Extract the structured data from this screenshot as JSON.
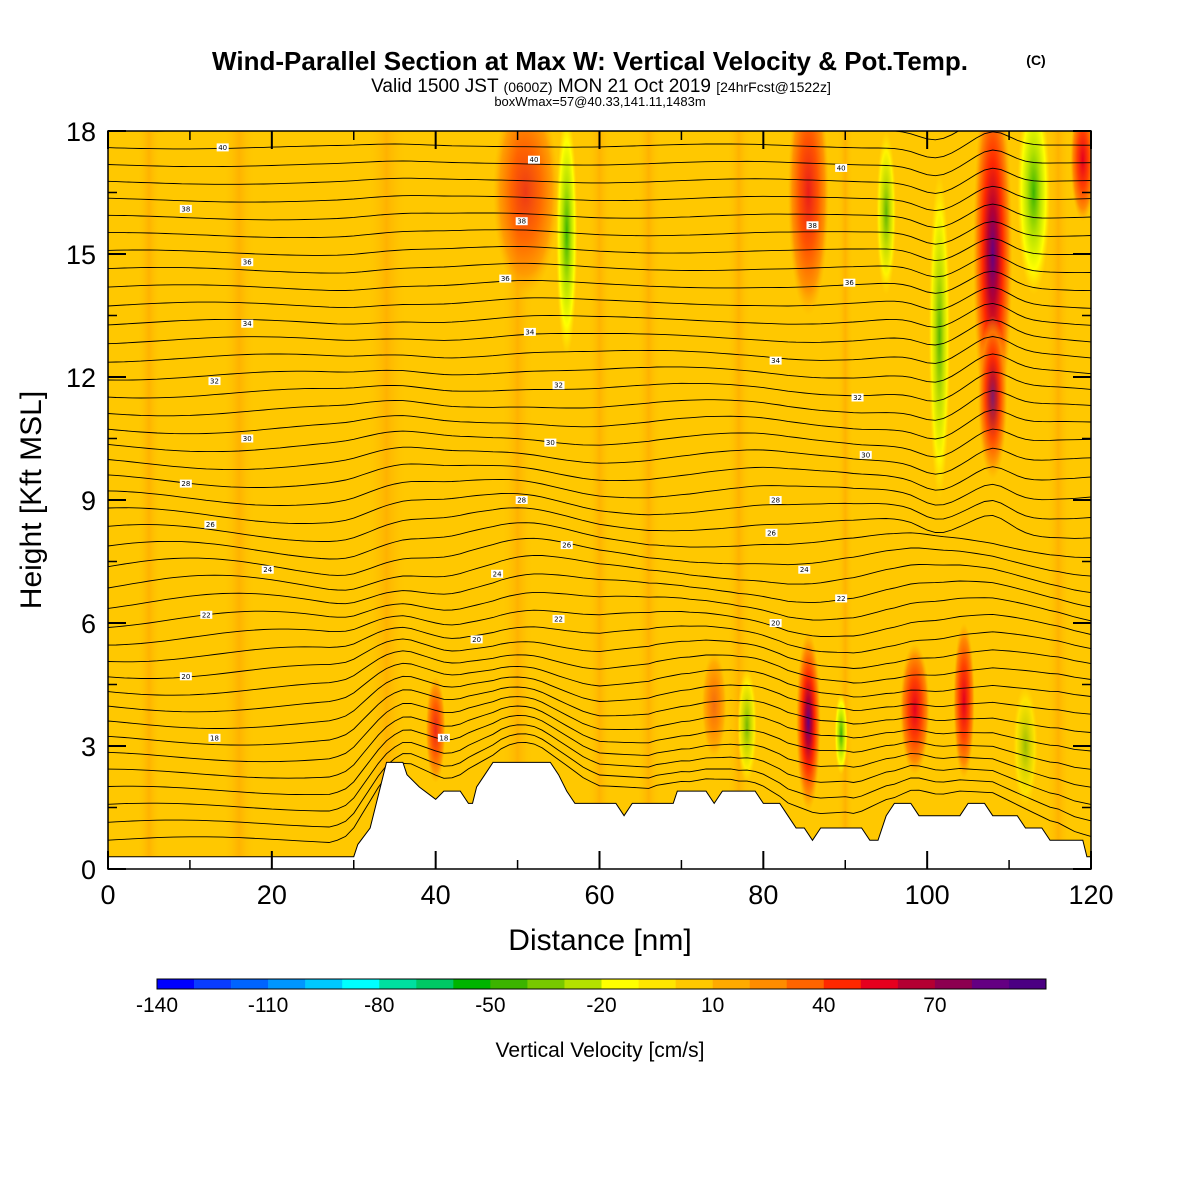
{
  "header": {
    "title": "Wind-Parallel Section at Max W: Vertical Velocity & Pot.Temp.",
    "copyright": "(C)",
    "valid_prefix": "Valid 1500 JST",
    "valid_zulu": "(0600Z)",
    "valid_date": "MON 21 Oct 2019",
    "forecast": "[24hrFcst@1522z]",
    "box_info": "boxWmax=57@40.33,141.11,1483m"
  },
  "chart_data": {
    "type": "heatmap",
    "xlabel": "Distance [nm]",
    "ylabel": "Height [Kft MSL]",
    "xlim": [
      0,
      120
    ],
    "ylim": [
      0,
      18
    ],
    "x_ticks": [
      "0",
      "20",
      "40",
      "60",
      "80",
      "100",
      "120"
    ],
    "y_ticks": [
      "0",
      "3",
      "6",
      "9",
      "12",
      "15",
      "18"
    ],
    "colorbar": {
      "label": "Vertical Velocity [cm/s]",
      "tick_labels": [
        "-140",
        "-110",
        "-80",
        "-50",
        "-20",
        "10",
        "40",
        "70"
      ],
      "tick_values": [
        -140,
        -110,
        -80,
        -50,
        -20,
        10,
        40,
        70
      ],
      "range": [
        -140,
        100
      ],
      "colors": [
        "#0000ff",
        "#0a3cff",
        "#0064ff",
        "#0096ff",
        "#00c8ff",
        "#00ffff",
        "#00e0a0",
        "#00c864",
        "#00b400",
        "#3cb400",
        "#78c800",
        "#b4e100",
        "#ffff00",
        "#ffe600",
        "#ffc800",
        "#ffaa00",
        "#ff8c00",
        "#ff6400",
        "#ff2800",
        "#e6001e",
        "#b40032",
        "#8c0050",
        "#640082",
        "#4b0082"
      ]
    },
    "terrain": [
      [
        0,
        0.3
      ],
      [
        30,
        0.3
      ],
      [
        30.5,
        0.6
      ],
      [
        32,
        1.0
      ],
      [
        33,
        1.8
      ],
      [
        34,
        2.6
      ],
      [
        36,
        2.6
      ],
      [
        36.5,
        2.3
      ],
      [
        38,
        2.0
      ],
      [
        40,
        1.7
      ],
      [
        41,
        1.9
      ],
      [
        43,
        1.9
      ],
      [
        44,
        1.6
      ],
      [
        44.5,
        1.6
      ],
      [
        45,
        2.0
      ],
      [
        46,
        2.3
      ],
      [
        47,
        2.6
      ],
      [
        54,
        2.6
      ],
      [
        55,
        2.3
      ],
      [
        56,
        1.9
      ],
      [
        57,
        1.6
      ],
      [
        62,
        1.6
      ],
      [
        63,
        1.3
      ],
      [
        64,
        1.6
      ],
      [
        69,
        1.6
      ],
      [
        69.5,
        1.9
      ],
      [
        73,
        1.9
      ],
      [
        74,
        1.6
      ],
      [
        75,
        1.9
      ],
      [
        79,
        1.9
      ],
      [
        80,
        1.6
      ],
      [
        82,
        1.6
      ],
      [
        83,
        1.3
      ],
      [
        84,
        1.0
      ],
      [
        85,
        1.0
      ],
      [
        86,
        0.7
      ],
      [
        87,
        1.0
      ],
      [
        92,
        1.0
      ],
      [
        93,
        0.7
      ],
      [
        94,
        0.7
      ],
      [
        95,
        1.3
      ],
      [
        96,
        1.6
      ],
      [
        98,
        1.6
      ],
      [
        99,
        1.3
      ],
      [
        104,
        1.3
      ],
      [
        105,
        1.6
      ],
      [
        107,
        1.6
      ],
      [
        108,
        1.3
      ],
      [
        111,
        1.3
      ],
      [
        112,
        1.0
      ],
      [
        114,
        1.0
      ],
      [
        115,
        0.7
      ],
      [
        119,
        0.7
      ],
      [
        119.5,
        0.3
      ],
      [
        120,
        0.3
      ]
    ],
    "theta_labels": [
      {
        "x": 14,
        "y": 17.6,
        "text": "40"
      },
      {
        "x": 9.5,
        "y": 16.1,
        "text": "38"
      },
      {
        "x": 17,
        "y": 14.8,
        "text": "36"
      },
      {
        "x": 17,
        "y": 13.3,
        "text": "34"
      },
      {
        "x": 13,
        "y": 11.9,
        "text": "32"
      },
      {
        "x": 17,
        "y": 10.5,
        "text": "30"
      },
      {
        "x": 9.5,
        "y": 9.4,
        "text": "28"
      },
      {
        "x": 12.5,
        "y": 8.4,
        "text": "26"
      },
      {
        "x": 19.5,
        "y": 7.3,
        "text": "24"
      },
      {
        "x": 12,
        "y": 6.2,
        "text": "22"
      },
      {
        "x": 9.5,
        "y": 4.7,
        "text": "20"
      },
      {
        "x": 13,
        "y": 3.2,
        "text": "18"
      },
      {
        "x": 41,
        "y": 3.2,
        "text": "18"
      },
      {
        "x": 52,
        "y": 17.3,
        "text": "40"
      },
      {
        "x": 50.5,
        "y": 15.8,
        "text": "38"
      },
      {
        "x": 48.5,
        "y": 14.4,
        "text": "36"
      },
      {
        "x": 51.5,
        "y": 13.1,
        "text": "34"
      },
      {
        "x": 55,
        "y": 11.8,
        "text": "32"
      },
      {
        "x": 54,
        "y": 10.4,
        "text": "30"
      },
      {
        "x": 50.5,
        "y": 9.0,
        "text": "28"
      },
      {
        "x": 56,
        "y": 7.9,
        "text": "26"
      },
      {
        "x": 47.5,
        "y": 7.2,
        "text": "24"
      },
      {
        "x": 55,
        "y": 6.1,
        "text": "22"
      },
      {
        "x": 45,
        "y": 5.6,
        "text": "20"
      },
      {
        "x": 89.5,
        "y": 17.1,
        "text": "40"
      },
      {
        "x": 86,
        "y": 15.7,
        "text": "38"
      },
      {
        "x": 90.5,
        "y": 14.3,
        "text": "36"
      },
      {
        "x": 81.5,
        "y": 12.4,
        "text": "34"
      },
      {
        "x": 91.5,
        "y": 11.5,
        "text": "32"
      },
      {
        "x": 92.5,
        "y": 10.1,
        "text": "30"
      },
      {
        "x": 81.5,
        "y": 9.0,
        "text": "28"
      },
      {
        "x": 81,
        "y": 8.2,
        "text": "26"
      },
      {
        "x": 85,
        "y": 7.3,
        "text": "24"
      },
      {
        "x": 89.5,
        "y": 6.6,
        "text": "22"
      },
      {
        "x": 81.5,
        "y": 6.0,
        "text": "20"
      }
    ]
  }
}
